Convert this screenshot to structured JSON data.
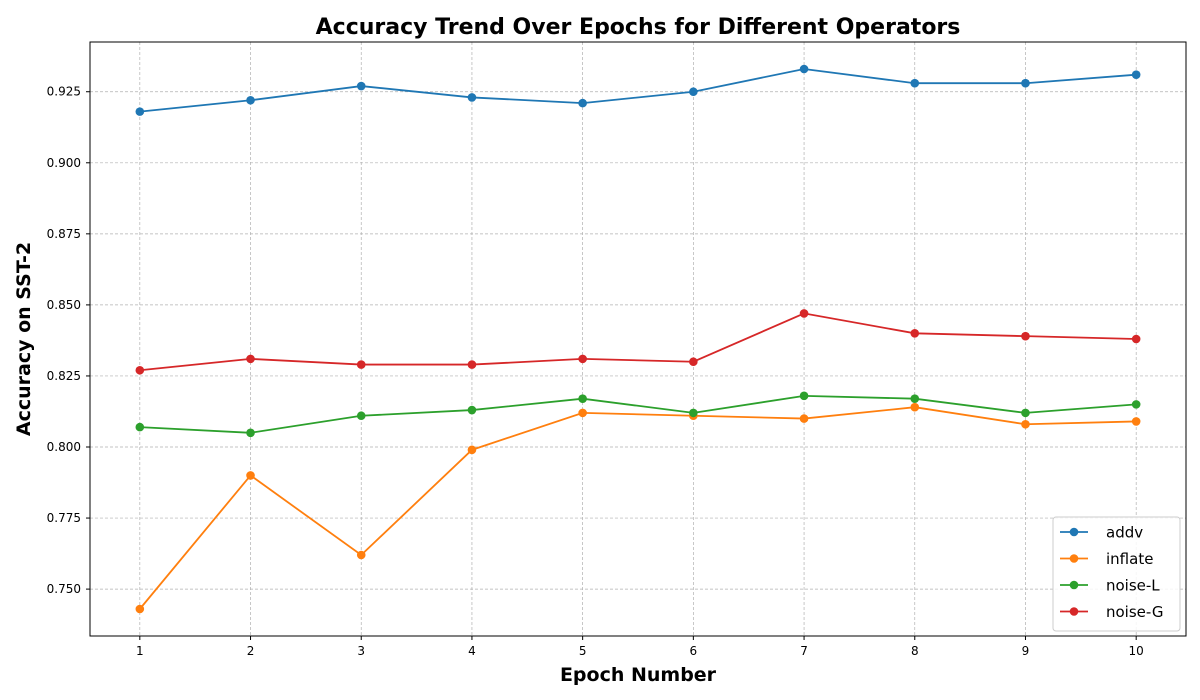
{
  "chart_data": {
    "type": "line",
    "title": "Accuracy Trend Over Epochs for Different Operators",
    "xlabel": "Epoch Number",
    "ylabel": "Accuracy on SST-2",
    "x": [
      1,
      2,
      3,
      4,
      5,
      6,
      7,
      8,
      9,
      10
    ],
    "xlim": [
      0.55,
      10.45
    ],
    "ylim": [
      0.7335,
      0.9425
    ],
    "yticks": [
      0.75,
      0.775,
      0.8,
      0.825,
      0.85,
      0.875,
      0.9,
      0.925
    ],
    "ytick_labels": [
      "0.750",
      "0.775",
      "0.800",
      "0.825",
      "0.850",
      "0.875",
      "0.900",
      "0.925"
    ],
    "xtick_labels": [
      "1",
      "2",
      "3",
      "4",
      "5",
      "6",
      "7",
      "8",
      "9",
      "10"
    ],
    "grid": true,
    "legend_position": "bottom-right",
    "series": [
      {
        "name": "addv",
        "color": "#1f77b4",
        "values": [
          0.918,
          0.922,
          0.927,
          0.923,
          0.921,
          0.925,
          0.933,
          0.928,
          0.928,
          0.931
        ]
      },
      {
        "name": "inflate",
        "color": "#ff7f0e",
        "values": [
          0.743,
          0.79,
          0.762,
          0.799,
          0.812,
          0.811,
          0.81,
          0.814,
          0.808,
          0.809
        ]
      },
      {
        "name": "noise-L",
        "color": "#2ca02c",
        "values": [
          0.807,
          0.805,
          0.811,
          0.813,
          0.817,
          0.812,
          0.818,
          0.817,
          0.812,
          0.815
        ]
      },
      {
        "name": "noise-G",
        "color": "#d62728",
        "values": [
          0.827,
          0.831,
          0.829,
          0.829,
          0.831,
          0.83,
          0.847,
          0.84,
          0.839,
          0.838
        ]
      }
    ]
  }
}
